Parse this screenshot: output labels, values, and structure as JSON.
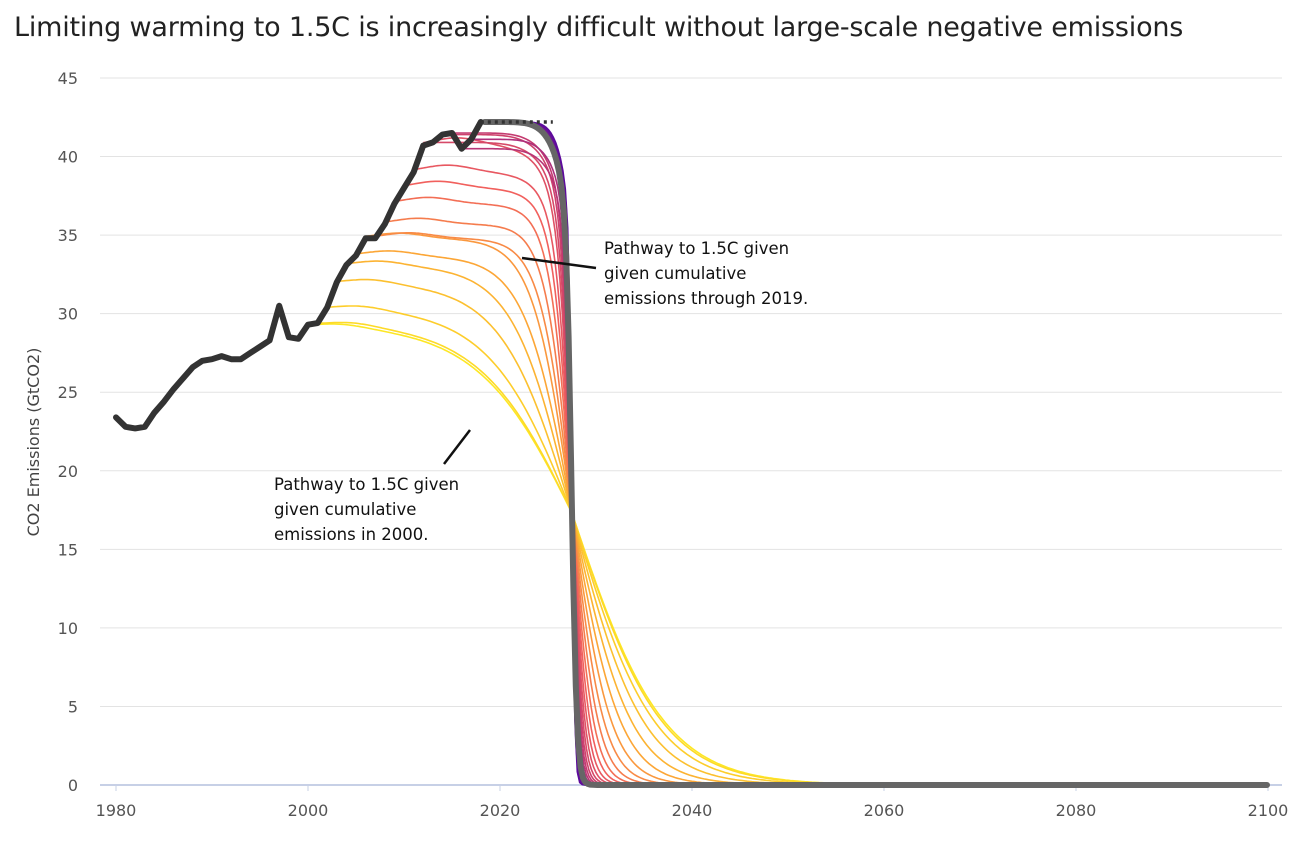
{
  "chart_data": {
    "type": "line",
    "title": "Limiting warming to 1.5C is increasingly difficult without large-scale negative emissions",
    "ylabel": "CO2 Emissions (GtCO2)",
    "xlabel": "",
    "xlim": [
      1980,
      2101
    ],
    "ylim": [
      0,
      45
    ],
    "xticks": [
      "1980",
      "2000",
      "2020",
      "2040",
      "2060",
      "2080",
      "2100"
    ],
    "yticks": [
      "0",
      "5",
      "10",
      "15",
      "20",
      "25",
      "30",
      "35",
      "40",
      "45"
    ],
    "grid": "horizontal",
    "historical": {
      "x": [
        1980,
        1981,
        1982,
        1983,
        1984,
        1985,
        1986,
        1987,
        1988,
        1989,
        1990,
        1991,
        1992,
        1993,
        1994,
        1995,
        1996,
        1997,
        1998,
        1999,
        2000,
        2001,
        2002,
        2003,
        2004,
        2005,
        2006,
        2007,
        2008,
        2009,
        2010,
        2011,
        2012,
        2013,
        2014,
        2015,
        2016,
        2017,
        2018
      ],
      "y": [
        23.4,
        22.8,
        22.7,
        22.8,
        23.7,
        24.4,
        25.2,
        25.9,
        26.6,
        27.0,
        27.1,
        27.3,
        27.1,
        27.1,
        27.5,
        27.9,
        28.3,
        30.5,
        28.5,
        28.4,
        29.3,
        29.4,
        30.4,
        32.0,
        33.1,
        33.7,
        34.8,
        34.8,
        35.7,
        37.0,
        38.0,
        39.0,
        40.7,
        40.9,
        41.4,
        41.5,
        40.5,
        41.1,
        42.2
      ]
    },
    "pathways": {
      "description_start_years": [
        2000,
        2001,
        2002,
        2003,
        2004,
        2005,
        2006,
        2007,
        2008,
        2009,
        2010,
        2011,
        2012,
        2013,
        2014,
        2015,
        2016,
        2017,
        2018,
        2019,
        2020,
        2021,
        2022,
        2023,
        2024,
        2025
      ],
      "highlighted_start_year": 2019,
      "crossing": {
        "x": 2027.5,
        "y": 17.3
      },
      "color_ramp": [
        "#fde724",
        "#fca636",
        "#f1605d",
        "#c43a70",
        "#8a1f8c",
        "#5c0a9c"
      ],
      "highlight_color": "#666666",
      "historical_color": "#333333",
      "end_value_2100": 0.6
    },
    "annotations": [
      {
        "lines": [
          "Pathway to 1.5C given",
          "given cumulative",
          "emissions through 2019."
        ]
      },
      {
        "lines": [
          "Pathway to 1.5C given",
          "given cumulative",
          "emissions in 2000."
        ]
      }
    ]
  }
}
